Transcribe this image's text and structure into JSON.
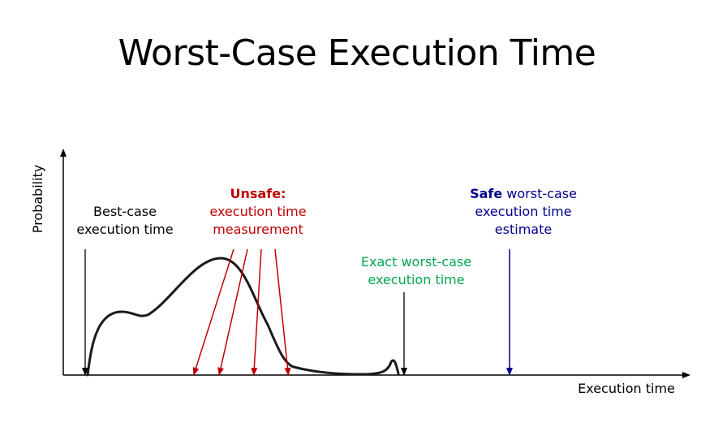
{
  "title": "Worst-Case Execution Time",
  "axes": {
    "x_label": "Execution time",
    "y_label": "Probability"
  },
  "labels": {
    "best_case": {
      "line1": "Best-case",
      "line2": "execution time"
    },
    "unsafe": {
      "head": "Unsafe:",
      "line1": "execution time",
      "line2": "measurement"
    },
    "exact": {
      "line1": "Exact worst-case",
      "line2": "execution time"
    },
    "safe": {
      "head": "Safe",
      "tail": " worst-case",
      "line1": "execution time",
      "line2": "estimate"
    }
  },
  "colors": {
    "axis": "#000000",
    "curve": "#1a1a1a",
    "best_case": "#000000",
    "unsafe": "#c00000",
    "exact": "#00a651",
    "safe": "#00008b"
  }
}
